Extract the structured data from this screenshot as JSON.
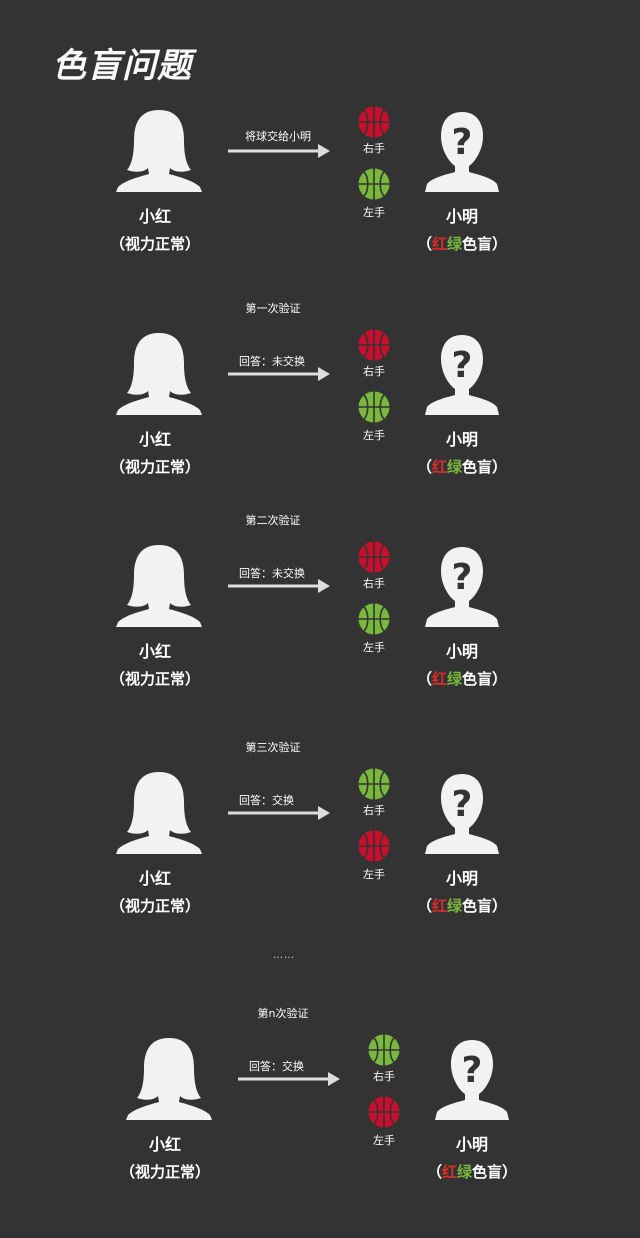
{
  "title": "色盲问题",
  "ellipsis": "……",
  "colors": {
    "background": "#333333",
    "red_ball": "#c8102e",
    "green_ball": "#78b83c",
    "figure": "#f2f2f2"
  },
  "person_a": {
    "name": "小红",
    "note": "（视力正常）"
  },
  "person_b": {
    "name": "小明",
    "note_open": "（",
    "note_red": "红",
    "note_green": "绿",
    "note_rest": "色盲）"
  },
  "hands": {
    "right": "右手",
    "left": "左手"
  },
  "panels": [
    {
      "label": "",
      "action": "将球交给小明",
      "top_ball": "red-ball",
      "bottom_ball": "green-ball"
    },
    {
      "label": "第一次验证",
      "action": "回答：未交换",
      "top_ball": "red-ball",
      "bottom_ball": "green-ball"
    },
    {
      "label": "第二次验证",
      "action": "回答：未交换",
      "top_ball": "red-ball",
      "bottom_ball": "green-ball"
    },
    {
      "label": "第三次验证",
      "action": "回答：交换",
      "top_ball": "green-ball",
      "bottom_ball": "red-ball"
    },
    {
      "label": "第n次验证",
      "action": "回答：交换",
      "top_ball": "green-ball",
      "bottom_ball": "red-ball"
    }
  ]
}
